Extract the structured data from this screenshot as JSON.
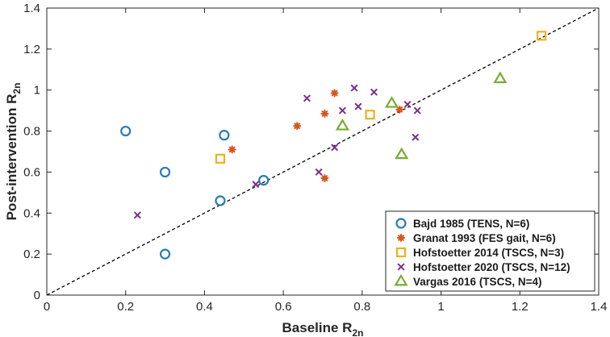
{
  "chart_data": {
    "type": "scatter",
    "title": "",
    "xlabel": "Baseline R",
    "xlabel_sub": "2n",
    "ylabel": "Post-intervention R",
    "ylabel_sub": "2n",
    "xlim": [
      0,
      1.4
    ],
    "ylim": [
      0,
      1.4
    ],
    "xticks": [
      0,
      0.2,
      0.4,
      0.6,
      0.8,
      1,
      1.2,
      1.4
    ],
    "xtick_labels": [
      "0",
      "0.2",
      "0.4",
      "0.6",
      "0.8",
      "1",
      "1.2",
      "1.4"
    ],
    "yticks": [
      0,
      0.2,
      0.4,
      0.6,
      0.8,
      1,
      1.2,
      1.4
    ],
    "ytick_labels": [
      "0",
      "0.2",
      "0.4",
      "0.6",
      "0.8",
      "1",
      "1.2",
      "1.4"
    ],
    "grid": false,
    "legend_position": "bottom-right",
    "reference_line": {
      "name": "identity",
      "style": "dashed",
      "color": "#000000",
      "points": [
        [
          0,
          0
        ],
        [
          1.4,
          1.4
        ]
      ]
    },
    "series": [
      {
        "name": "Bajd 1985 (TENS, N=6)",
        "marker": "circle",
        "color": "#2a7ab8",
        "points": [
          [
            0.2,
            0.8
          ],
          [
            0.3,
            0.6
          ],
          [
            0.3,
            0.2
          ],
          [
            0.44,
            0.46
          ],
          [
            0.45,
            0.78
          ],
          [
            0.55,
            0.56
          ]
        ]
      },
      {
        "name": "Granat 1993 (FES gait, N=6)",
        "marker": "asterisk",
        "color": "#d95319",
        "points": [
          [
            0.47,
            0.71
          ],
          [
            0.635,
            0.825
          ],
          [
            0.705,
            0.57
          ],
          [
            0.705,
            0.885
          ],
          [
            0.73,
            0.985
          ],
          [
            0.895,
            0.905
          ]
        ]
      },
      {
        "name": "Hofstoetter 2014 (TSCS, N=3)",
        "marker": "square",
        "color": "#edb120",
        "points": [
          [
            0.44,
            0.665
          ],
          [
            0.82,
            0.88
          ],
          [
            1.255,
            1.265
          ]
        ]
      },
      {
        "name": "Hofstoetter 2020 (TSCS, N=12)",
        "marker": "x",
        "color": "#7e2f8e",
        "points": [
          [
            0.23,
            0.39
          ],
          [
            0.53,
            0.54
          ],
          [
            0.66,
            0.96
          ],
          [
            0.69,
            0.6
          ],
          [
            0.73,
            0.72
          ],
          [
            0.75,
            0.9
          ],
          [
            0.78,
            1.01
          ],
          [
            0.79,
            0.92
          ],
          [
            0.83,
            0.99
          ],
          [
            0.915,
            0.93
          ],
          [
            0.935,
            0.77
          ],
          [
            0.94,
            0.9
          ]
        ]
      },
      {
        "name": "Vargas 2016 (TSCS, N=4)",
        "marker": "triangle",
        "color": "#77ac30",
        "points": [
          [
            0.75,
            0.825
          ],
          [
            0.875,
            0.935
          ],
          [
            0.9,
            0.685
          ],
          [
            1.15,
            1.055
          ]
        ]
      }
    ]
  }
}
